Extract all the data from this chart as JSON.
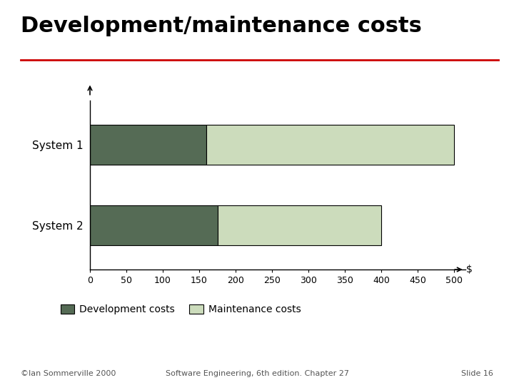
{
  "title": "Development/maintenance costs",
  "title_fontsize": 22,
  "title_fontweight": "bold",
  "title_underline_color": "#cc0000",
  "categories": [
    "System 2",
    "System 1"
  ],
  "dev_values": [
    175,
    160
  ],
  "maint_values": [
    225,
    340
  ],
  "dev_color": "#556b55",
  "maint_color": "#ccdcbc",
  "dev_label": "Development costs",
  "maint_label": "Maintenance costs",
  "xlim": [
    0,
    515
  ],
  "xticks": [
    0,
    50,
    100,
    150,
    200,
    250,
    300,
    350,
    400,
    450,
    500
  ],
  "xlabel_dollar": "$",
  "bar_height": 0.5,
  "bar_edgecolor": "#000000",
  "background_color": "#ffffff",
  "footer_left": "©Ian Sommerville 2000",
  "footer_center": "Software Engineering, 6th edition. Chapter 27",
  "footer_right": "Slide 16",
  "footer_fontsize": 8
}
